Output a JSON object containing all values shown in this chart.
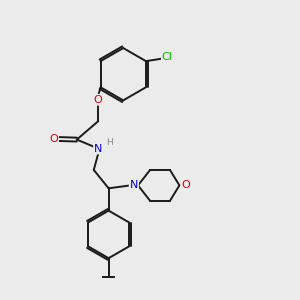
{
  "bg_color": "#ebebeb",
  "bond_color": "#1a1a1a",
  "bond_width": 1.4,
  "atom_colors": {
    "O": "#dd0000",
    "N": "#0000cc",
    "Cl": "#00bb00",
    "H": "#888888"
  },
  "font_size": 8.0,
  "fig_size": [
    3.0,
    3.0
  ],
  "dpi": 100
}
